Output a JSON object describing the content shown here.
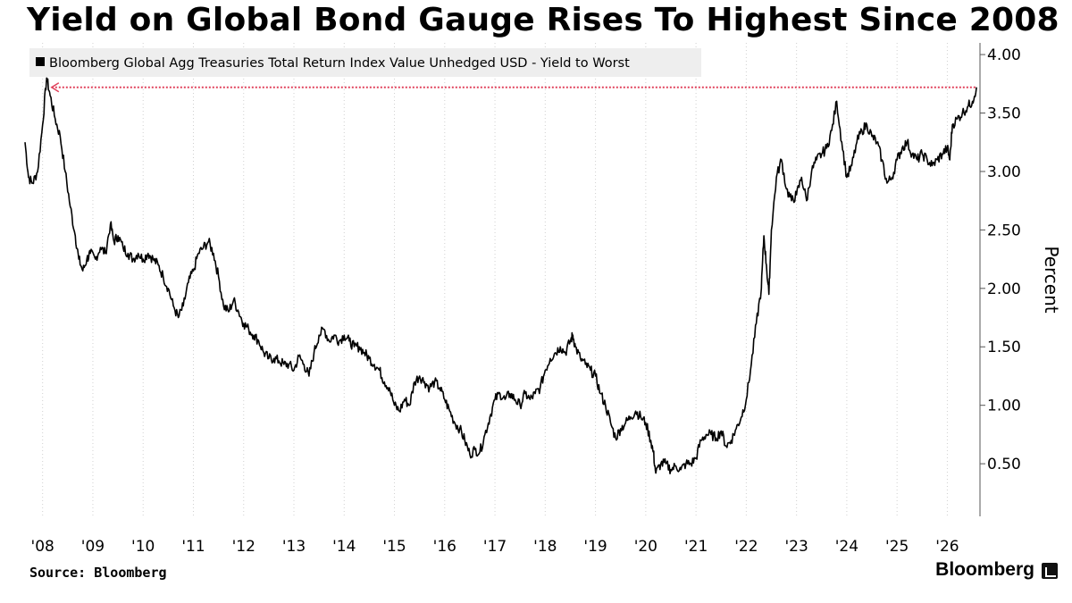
{
  "title": "Yield on Global Bond Gauge Rises To Highest Since 2008",
  "source": "Source: Bloomberg",
  "brand": "Bloomberg",
  "colors": {
    "series": "#000000",
    "reference": "#e0405a",
    "grid": "#d0d0d0",
    "legend_bg": "#eeeeee"
  },
  "chart_data": {
    "type": "line",
    "title": "Yield on Global Bond Gauge Rises To Highest Since 2008",
    "ylabel": "Percent",
    "xlabel": "",
    "y_axis_side": "right",
    "ylim": [
      0.05,
      4.1
    ],
    "xlim": [
      2007.65,
      2026.65
    ],
    "x_tick_labels": [
      "'08",
      "'09",
      "'10",
      "'11",
      "'12",
      "'13",
      "'14",
      "'15",
      "'16",
      "'17",
      "'18",
      "'19",
      "'20",
      "'21",
      "'22",
      "'23",
      "'24",
      "'25",
      "'26"
    ],
    "x_tick_values": [
      2008,
      2009,
      2010,
      2011,
      2012,
      2013,
      2014,
      2015,
      2016,
      2017,
      2018,
      2019,
      2020,
      2021,
      2022,
      2023,
      2024,
      2025,
      2026
    ],
    "y_ticks": [
      4.0,
      3.5,
      3.0,
      2.5,
      2.0,
      1.5,
      1.0,
      0.5
    ],
    "y_tick_labels": [
      "4.00",
      "3.50",
      "3.00",
      "2.50",
      "2.00",
      "1.50",
      "1.00",
      "0.50"
    ],
    "grid": "vertical",
    "legend_position": "top-left",
    "series": [
      {
        "name": "Bloomberg Global Agg Treasuries Total Return Index Value Unhedged USD - Yield to Worst",
        "color": "#000000",
        "points": [
          [
            2007.65,
            3.25
          ],
          [
            2007.72,
            2.95
          ],
          [
            2007.8,
            2.9
          ],
          [
            2007.9,
            3.0
          ],
          [
            2008.0,
            3.4
          ],
          [
            2008.08,
            3.8
          ],
          [
            2008.15,
            3.65
          ],
          [
            2008.25,
            3.45
          ],
          [
            2008.35,
            3.3
          ],
          [
            2008.45,
            3.0
          ],
          [
            2008.55,
            2.7
          ],
          [
            2008.65,
            2.45
          ],
          [
            2008.72,
            2.25
          ],
          [
            2008.8,
            2.15
          ],
          [
            2008.88,
            2.25
          ],
          [
            2008.95,
            2.3
          ],
          [
            2009.05,
            2.25
          ],
          [
            2009.15,
            2.35
          ],
          [
            2009.25,
            2.3
          ],
          [
            2009.35,
            2.55
          ],
          [
            2009.42,
            2.4
          ],
          [
            2009.5,
            2.45
          ],
          [
            2009.6,
            2.35
          ],
          [
            2009.7,
            2.3
          ],
          [
            2009.8,
            2.25
          ],
          [
            2009.9,
            2.3
          ],
          [
            2010.0,
            2.25
          ],
          [
            2010.1,
            2.3
          ],
          [
            2010.2,
            2.25
          ],
          [
            2010.3,
            2.2
          ],
          [
            2010.4,
            2.1
          ],
          [
            2010.5,
            2.0
          ],
          [
            2010.6,
            1.85
          ],
          [
            2010.7,
            1.75
          ],
          [
            2010.8,
            1.85
          ],
          [
            2010.9,
            2.05
          ],
          [
            2011.0,
            2.15
          ],
          [
            2011.1,
            2.3
          ],
          [
            2011.2,
            2.35
          ],
          [
            2011.3,
            2.4
          ],
          [
            2011.4,
            2.3
          ],
          [
            2011.5,
            2.1
          ],
          [
            2011.6,
            1.85
          ],
          [
            2011.7,
            1.8
          ],
          [
            2011.8,
            1.9
          ],
          [
            2011.9,
            1.8
          ],
          [
            2012.0,
            1.7
          ],
          [
            2012.1,
            1.65
          ],
          [
            2012.2,
            1.6
          ],
          [
            2012.3,
            1.55
          ],
          [
            2012.4,
            1.45
          ],
          [
            2012.5,
            1.4
          ],
          [
            2012.6,
            1.4
          ],
          [
            2012.7,
            1.38
          ],
          [
            2012.8,
            1.35
          ],
          [
            2012.9,
            1.35
          ],
          [
            2013.0,
            1.3
          ],
          [
            2013.1,
            1.42
          ],
          [
            2013.2,
            1.35
          ],
          [
            2013.3,
            1.25
          ],
          [
            2013.4,
            1.45
          ],
          [
            2013.5,
            1.6
          ],
          [
            2013.6,
            1.65
          ],
          [
            2013.7,
            1.55
          ],
          [
            2013.8,
            1.6
          ],
          [
            2013.9,
            1.55
          ],
          [
            2014.0,
            1.6
          ],
          [
            2014.1,
            1.55
          ],
          [
            2014.2,
            1.5
          ],
          [
            2014.3,
            1.5
          ],
          [
            2014.4,
            1.45
          ],
          [
            2014.5,
            1.4
          ],
          [
            2014.6,
            1.35
          ],
          [
            2014.7,
            1.3
          ],
          [
            2014.8,
            1.2
          ],
          [
            2014.9,
            1.15
          ],
          [
            2015.0,
            1.0
          ],
          [
            2015.1,
            0.95
          ],
          [
            2015.2,
            1.05
          ],
          [
            2015.3,
            1.0
          ],
          [
            2015.4,
            1.2
          ],
          [
            2015.5,
            1.25
          ],
          [
            2015.6,
            1.2
          ],
          [
            2015.7,
            1.15
          ],
          [
            2015.8,
            1.2
          ],
          [
            2015.9,
            1.15
          ],
          [
            2016.0,
            1.05
          ],
          [
            2016.1,
            0.95
          ],
          [
            2016.2,
            0.85
          ],
          [
            2016.3,
            0.8
          ],
          [
            2016.4,
            0.7
          ],
          [
            2016.5,
            0.58
          ],
          [
            2016.6,
            0.62
          ],
          [
            2016.7,
            0.6
          ],
          [
            2016.8,
            0.75
          ],
          [
            2016.9,
            0.9
          ],
          [
            2017.0,
            1.05
          ],
          [
            2017.1,
            1.1
          ],
          [
            2017.2,
            1.05
          ],
          [
            2017.3,
            1.1
          ],
          [
            2017.4,
            1.05
          ],
          [
            2017.5,
            1.0
          ],
          [
            2017.6,
            1.1
          ],
          [
            2017.7,
            1.05
          ],
          [
            2017.8,
            1.1
          ],
          [
            2017.9,
            1.15
          ],
          [
            2018.0,
            1.3
          ],
          [
            2018.1,
            1.4
          ],
          [
            2018.2,
            1.45
          ],
          [
            2018.3,
            1.5
          ],
          [
            2018.4,
            1.45
          ],
          [
            2018.5,
            1.55
          ],
          [
            2018.55,
            1.6
          ],
          [
            2018.6,
            1.5
          ],
          [
            2018.7,
            1.4
          ],
          [
            2018.8,
            1.35
          ],
          [
            2018.9,
            1.3
          ],
          [
            2019.0,
            1.25
          ],
          [
            2019.1,
            1.1
          ],
          [
            2019.2,
            1.0
          ],
          [
            2019.3,
            0.85
          ],
          [
            2019.4,
            0.72
          ],
          [
            2019.5,
            0.8
          ],
          [
            2019.6,
            0.85
          ],
          [
            2019.7,
            0.9
          ],
          [
            2019.8,
            0.95
          ],
          [
            2019.9,
            0.9
          ],
          [
            2020.0,
            0.85
          ],
          [
            2020.1,
            0.7
          ],
          [
            2020.15,
            0.6
          ],
          [
            2020.2,
            0.42
          ],
          [
            2020.3,
            0.5
          ],
          [
            2020.4,
            0.5
          ],
          [
            2020.5,
            0.45
          ],
          [
            2020.6,
            0.48
          ],
          [
            2020.7,
            0.45
          ],
          [
            2020.8,
            0.5
          ],
          [
            2020.9,
            0.5
          ],
          [
            2021.0,
            0.55
          ],
          [
            2021.1,
            0.7
          ],
          [
            2021.2,
            0.75
          ],
          [
            2021.3,
            0.75
          ],
          [
            2021.4,
            0.72
          ],
          [
            2021.5,
            0.78
          ],
          [
            2021.6,
            0.65
          ],
          [
            2021.7,
            0.7
          ],
          [
            2021.8,
            0.8
          ],
          [
            2021.9,
            0.9
          ],
          [
            2022.0,
            1.05
          ],
          [
            2022.1,
            1.35
          ],
          [
            2022.2,
            1.7
          ],
          [
            2022.3,
            2.0
          ],
          [
            2022.35,
            2.45
          ],
          [
            2022.4,
            2.2
          ],
          [
            2022.45,
            1.95
          ],
          [
            2022.5,
            2.5
          ],
          [
            2022.6,
            2.95
          ],
          [
            2022.7,
            3.1
          ],
          [
            2022.8,
            2.85
          ],
          [
            2022.9,
            2.75
          ],
          [
            2023.0,
            2.8
          ],
          [
            2023.1,
            2.95
          ],
          [
            2023.2,
            2.75
          ],
          [
            2023.3,
            3.0
          ],
          [
            2023.4,
            3.1
          ],
          [
            2023.5,
            3.15
          ],
          [
            2023.6,
            3.2
          ],
          [
            2023.7,
            3.35
          ],
          [
            2023.8,
            3.6
          ],
          [
            2023.9,
            3.25
          ],
          [
            2024.0,
            2.95
          ],
          [
            2024.1,
            3.05
          ],
          [
            2024.2,
            3.25
          ],
          [
            2024.3,
            3.35
          ],
          [
            2024.4,
            3.4
          ],
          [
            2024.5,
            3.3
          ],
          [
            2024.6,
            3.25
          ],
          [
            2024.7,
            3.1
          ],
          [
            2024.8,
            2.9
          ],
          [
            2024.9,
            2.95
          ],
          [
            2025.0,
            3.1
          ],
          [
            2025.1,
            3.2
          ],
          [
            2025.2,
            3.25
          ],
          [
            2025.3,
            3.15
          ],
          [
            2025.4,
            3.1
          ],
          [
            2025.5,
            3.15
          ],
          [
            2025.6,
            3.1
          ],
          [
            2025.7,
            3.05
          ],
          [
            2025.8,
            3.1
          ],
          [
            2025.9,
            3.15
          ],
          [
            2026.0,
            3.2
          ],
          [
            2026.05,
            3.1
          ],
          [
            2026.1,
            3.4
          ],
          [
            2026.2,
            3.45
          ],
          [
            2026.3,
            3.5
          ],
          [
            2026.4,
            3.55
          ],
          [
            2026.5,
            3.6
          ],
          [
            2026.58,
            3.72
          ]
        ]
      }
    ],
    "annotations": [
      {
        "type": "reference-line",
        "y": 3.72,
        "x_from": 2008.18,
        "x_to": 2026.58,
        "style": "dotted",
        "color": "#e0405a",
        "arrow": "left"
      }
    ]
  }
}
